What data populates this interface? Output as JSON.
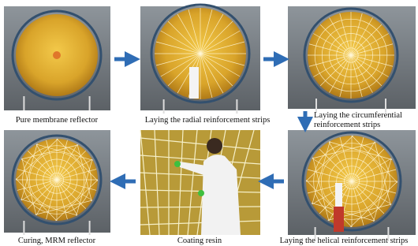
{
  "panels": [
    {
      "caption": "Pure membrane reflector"
    },
    {
      "caption": "Laying the radial reinforcement strips"
    },
    {
      "caption": "Laying the circumferential reinforcement strips"
    },
    {
      "caption": "Laying the helical reinforcement strips"
    },
    {
      "caption": "Coating resin"
    },
    {
      "caption": "Curing, MRM reflector"
    }
  ]
}
